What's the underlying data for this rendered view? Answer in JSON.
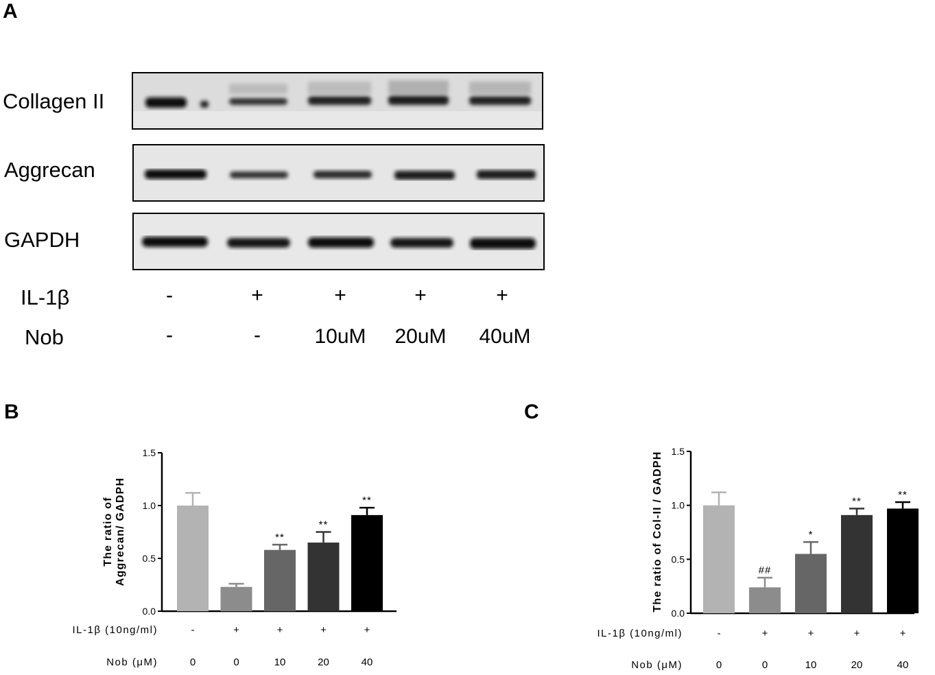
{
  "panels": {
    "a": "A",
    "b": "B",
    "c": "C"
  },
  "blot": {
    "rows": [
      "Collagen II",
      "Aggrecan",
      "GAPDH"
    ],
    "conditions": [
      {
        "label": "IL-1β",
        "values": [
          "-",
          "+",
          "+",
          "+",
          "+"
        ]
      },
      {
        "label": "Nob",
        "values": [
          "-",
          "-",
          "10uM",
          "20uM",
          "40uM"
        ]
      }
    ]
  },
  "chart_data": [
    {
      "type": "bar",
      "ylabel_lines": [
        "The ratio of",
        "Aggrecan/ GADPH"
      ],
      "ylim": [
        0,
        1.5
      ],
      "yticks": [
        "0.0",
        "0.5",
        "1.0",
        "1.5"
      ],
      "categories": [
        "1",
        "2",
        "3",
        "4",
        "5"
      ],
      "values": [
        1.0,
        0.23,
        0.58,
        0.65,
        0.91
      ],
      "errors": [
        0.12,
        0.03,
        0.05,
        0.1,
        0.07
      ],
      "annotations": [
        "",
        "",
        "**",
        "**",
        "**"
      ],
      "colors": [
        "#b3b3b3",
        "#8c8c8c",
        "#666666",
        "#333333",
        "#000000"
      ],
      "x_rows": [
        {
          "label": "IL-1β (10ng/ml)",
          "values": [
            "-",
            "+",
            "+",
            "+",
            "+"
          ]
        },
        {
          "label": "Nob (μM)",
          "values": [
            "0",
            "0",
            "10",
            "20",
            "40"
          ]
        }
      ]
    },
    {
      "type": "bar",
      "ylabel_lines": [
        "The ratio of Col-II / GADPH"
      ],
      "ylim": [
        0,
        1.5
      ],
      "yticks": [
        "0.0",
        "0.5",
        "1.0",
        "1.5"
      ],
      "categories": [
        "1",
        "2",
        "3",
        "4",
        "5"
      ],
      "values": [
        1.0,
        0.24,
        0.55,
        0.91,
        0.97
      ],
      "errors": [
        0.12,
        0.09,
        0.11,
        0.06,
        0.06
      ],
      "annotations": [
        "",
        "##",
        "*",
        "**",
        "**"
      ],
      "colors": [
        "#b3b3b3",
        "#8c8c8c",
        "#666666",
        "#333333",
        "#000000"
      ],
      "x_rows": [
        {
          "label": "IL-1β (10ng/ml)",
          "values": [
            "-",
            "+",
            "+",
            "+",
            "+"
          ]
        },
        {
          "label": "Nob (μM)",
          "values": [
            "0",
            "0",
            "10",
            "20",
            "40"
          ]
        }
      ]
    }
  ]
}
